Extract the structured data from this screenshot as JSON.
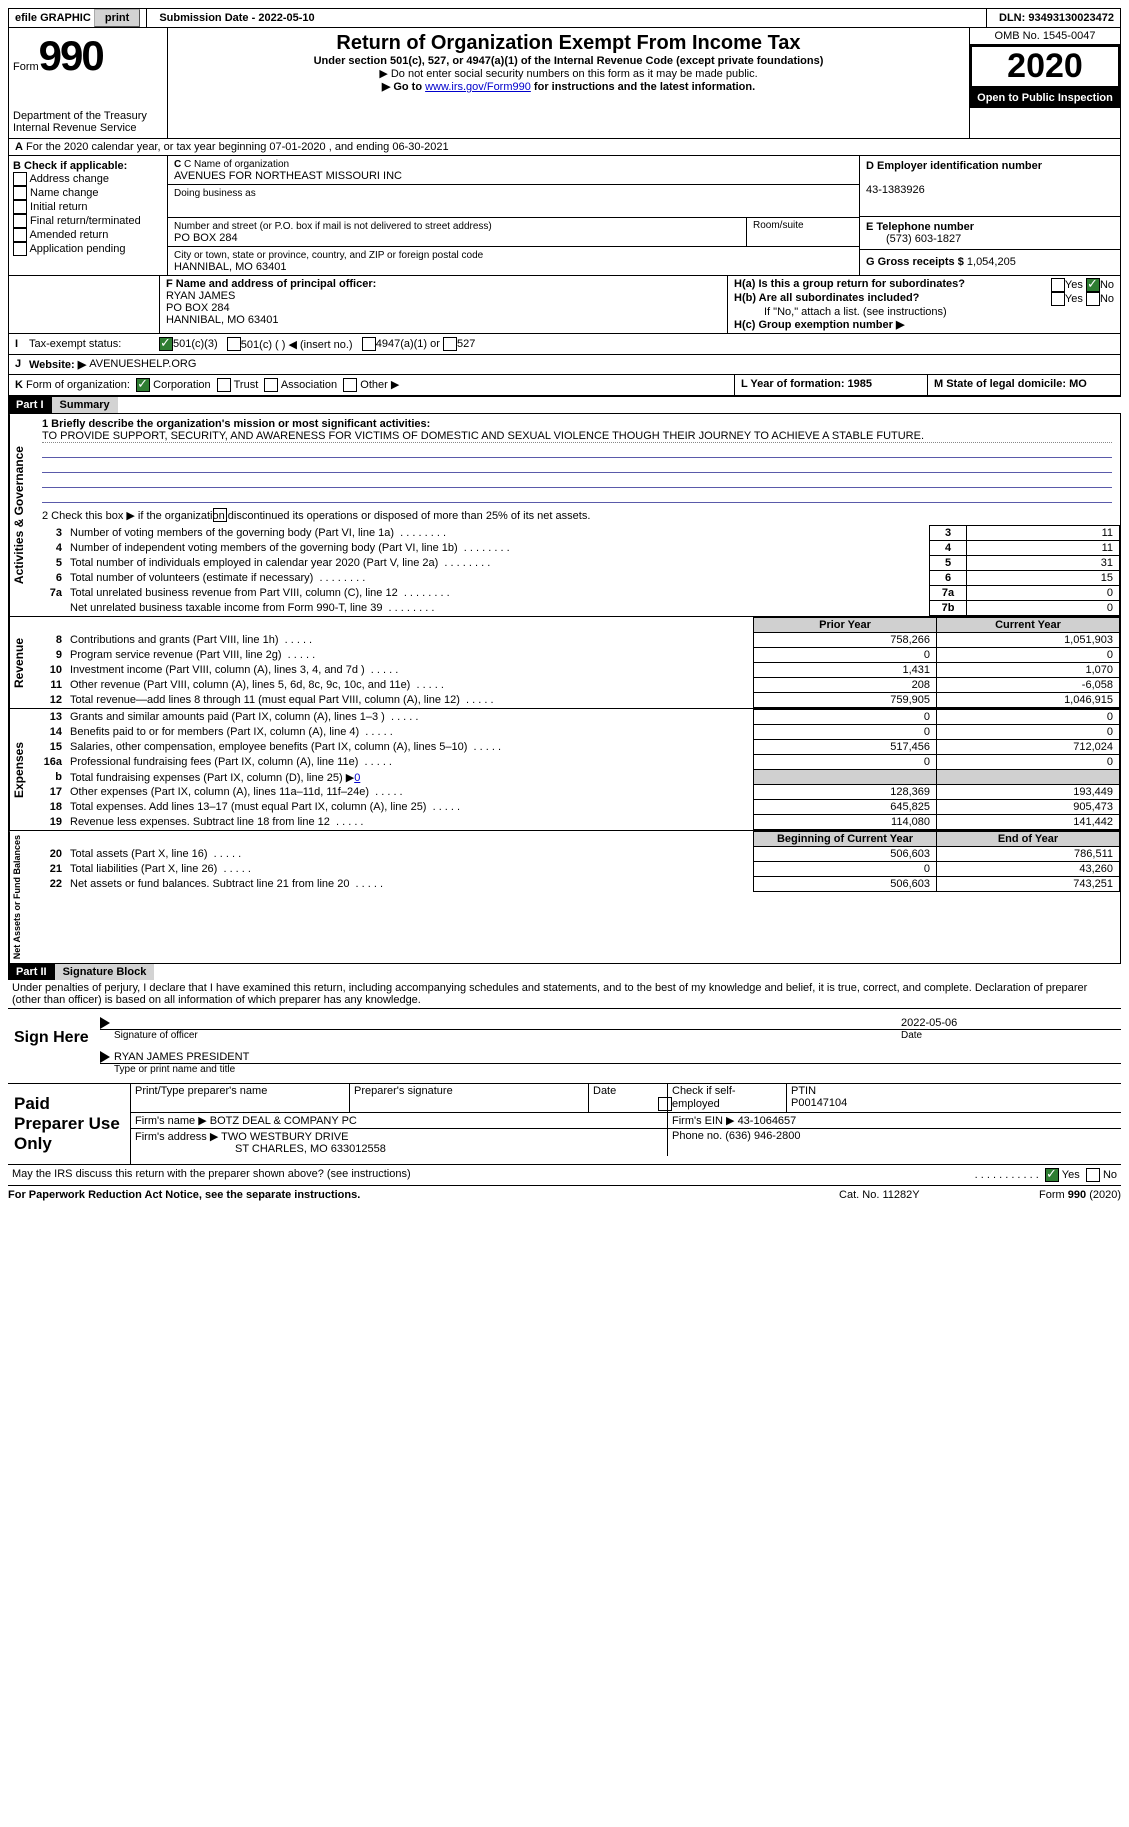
{
  "topbar": {
    "efile": "efile GRAPHIC",
    "print": "print",
    "subdate_label": "Submission Date - ",
    "subdate": "2022-05-10",
    "dln_label": "DLN: ",
    "dln": "93493130023472"
  },
  "header": {
    "form_label": "Form",
    "form_num": "990",
    "dept": "Department of the Treasury\nInternal Revenue Service",
    "title": "Return of Organization Exempt From Income Tax",
    "sub1": "Under section 501(c), 527, or 4947(a)(1) of the Internal Revenue Code (except private foundations)",
    "sub2": "▶ Do not enter social security numbers on this form as it may be made public.",
    "sub3": "▶ Go to ",
    "sub3_link": "www.irs.gov/Form990",
    "sub3_after": " for instructions and the latest information.",
    "omb": "OMB No. 1545-0047",
    "year": "2020",
    "open": "Open to Public Inspection"
  },
  "a_line": "For the 2020 calendar year, or tax year beginning 07-01-2020   , and ending 06-30-2021",
  "boxB": {
    "hdr": "B Check if applicable:",
    "items": [
      "Address change",
      "Name change",
      "Initial return",
      "Final return/terminated",
      "Amended return",
      "Application pending"
    ]
  },
  "boxC": {
    "hdr": "C Name of organization",
    "name": "AVENUES FOR NORTHEAST MISSOURI INC",
    "dba": "Doing business as",
    "addr_hdr": "Number and street (or P.O. box if mail is not delivered to street address)",
    "room": "Room/suite",
    "addr": "PO BOX 284",
    "city_hdr": "City or town, state or province, country, and ZIP or foreign postal code",
    "city": "HANNIBAL, MO  63401"
  },
  "boxD": {
    "hdr": "D Employer identification number",
    "val": "43-1383926"
  },
  "boxE": {
    "hdr": "E Telephone number",
    "val": "(573) 603-1827"
  },
  "boxG": {
    "hdr": "G Gross receipts $ ",
    "val": "1,054,205"
  },
  "boxF": {
    "hdr": "F Name and address of principal officer:",
    "l1": "RYAN JAMES",
    "l2": "PO BOX 284",
    "l3": "HANNIBAL, MO  63401"
  },
  "boxH": {
    "a": "H(a)  Is this a group return for subordinates?",
    "b": "H(b)  Are all subordinates included?",
    "bnote": "If \"No,\" attach a list. (see instructions)",
    "c": "H(c)  Group exemption number ▶",
    "yes": "Yes",
    "no": "No"
  },
  "rowI": {
    "lbl": "I",
    "txt": "Tax-exempt status:",
    "o1": "501(c)(3)",
    "o2": "501(c) (  ) ◀ (insert no.)",
    "o3": "4947(a)(1) or",
    "o4": "527"
  },
  "rowJ": {
    "lbl": "J",
    "txt": "Website: ▶",
    "val": "AVENUESHELP.ORG"
  },
  "rowK": {
    "lbl": "K",
    "txt": "Form of organization:",
    "o1": "Corporation",
    "o2": "Trust",
    "o3": "Association",
    "o4": "Other ▶",
    "L": "L Year of formation: 1985",
    "M": "M State of legal domicile: MO"
  },
  "part1": {
    "bar": "Part I",
    "title": "Summary",
    "l1": "1 Briefly describe the organization's mission or most significant activities:",
    "mission": "TO PROVIDE SUPPORT, SECURITY, AND AWARENESS FOR VICTIMS OF DOMESTIC AND SEXUAL VIOLENCE THOUGH THEIR JOURNEY TO ACHIEVE A STABLE FUTURE.",
    "l2": "2  Check this box ▶      if the organization discontinued its operations or disposed of more than 25% of its net assets.",
    "rows_top": [
      {
        "n": "3",
        "t": "Number of voting members of the governing body (Part VI, line 1a)",
        "v": "11"
      },
      {
        "n": "4",
        "t": "Number of independent voting members of the governing body (Part VI, line 1b)",
        "v": "11"
      },
      {
        "n": "5",
        "t": "Total number of individuals employed in calendar year 2020 (Part V, line 2a)",
        "v": "31"
      },
      {
        "n": "6",
        "t": "Total number of volunteers (estimate if necessary)",
        "v": "15"
      },
      {
        "n": "7a",
        "t": "Total unrelated business revenue from Part VIII, column (C), line 12",
        "v": "0"
      },
      {
        "n": "7b",
        "t": "Net unrelated business taxable income from Form 990-T, line 39",
        "v": "0",
        "no_n_col": true
      }
    ],
    "col_prior": "Prior Year",
    "col_curr": "Current Year",
    "sec_rev": "Revenue",
    "sec_exp": "Expenses",
    "sec_na": "Net Assets or Fund Balances",
    "sec_gov": "Activities & Governance",
    "rows_rev": [
      {
        "n": "8",
        "t": "Contributions and grants (Part VIII, line 1h)",
        "p": "758,266",
        "c": "1,051,903"
      },
      {
        "n": "9",
        "t": "Program service revenue (Part VIII, line 2g)",
        "p": "0",
        "c": "0"
      },
      {
        "n": "10",
        "t": "Investment income (Part VIII, column (A), lines 3, 4, and 7d )",
        "p": "1,431",
        "c": "1,070"
      },
      {
        "n": "11",
        "t": "Other revenue (Part VIII, column (A), lines 5, 6d, 8c, 9c, 10c, and 11e)",
        "p": "208",
        "c": "-6,058"
      },
      {
        "n": "12",
        "t": "Total revenue—add lines 8 through 11 (must equal Part VIII, column (A), line 12)",
        "p": "759,905",
        "c": "1,046,915"
      }
    ],
    "rows_exp": [
      {
        "n": "13",
        "t": "Grants and similar amounts paid (Part IX, column (A), lines 1–3 )",
        "p": "0",
        "c": "0"
      },
      {
        "n": "14",
        "t": "Benefits paid to or for members (Part IX, column (A), line 4)",
        "p": "0",
        "c": "0"
      },
      {
        "n": "15",
        "t": "Salaries, other compensation, employee benefits (Part IX, column (A), lines 5–10)",
        "p": "517,456",
        "c": "712,024"
      },
      {
        "n": "16a",
        "t": "Professional fundraising fees (Part IX, column (A), line 11e)",
        "p": "0",
        "c": "0"
      },
      {
        "n": "b",
        "t": "Total fundraising expenses (Part IX, column (D), line 25) ▶",
        "inline": "0",
        "shade": true
      },
      {
        "n": "17",
        "t": "Other expenses (Part IX, column (A), lines 11a–11d, 11f–24e)",
        "p": "128,369",
        "c": "193,449"
      },
      {
        "n": "18",
        "t": "Total expenses. Add lines 13–17 (must equal Part IX, column (A), line 25)",
        "p": "645,825",
        "c": "905,473"
      },
      {
        "n": "19",
        "t": "Revenue less expenses. Subtract line 18 from line 12",
        "p": "114,080",
        "c": "141,442"
      }
    ],
    "col_beg": "Beginning of Current Year",
    "col_end": "End of Year",
    "rows_na": [
      {
        "n": "20",
        "t": "Total assets (Part X, line 16)",
        "p": "506,603",
        "c": "786,511"
      },
      {
        "n": "21",
        "t": "Total liabilities (Part X, line 26)",
        "p": "0",
        "c": "43,260"
      },
      {
        "n": "22",
        "t": "Net assets or fund balances. Subtract line 21 from line 20",
        "p": "506,603",
        "c": "743,251"
      }
    ]
  },
  "part2": {
    "bar": "Part II",
    "title": "Signature Block",
    "decl": "Under penalties of perjury, I declare that I have examined this return, including accompanying schedules and statements, and to the best of my knowledge and belief, it is true, correct, and complete. Declaration of preparer (other than officer) is based on all information of which preparer has any knowledge.",
    "sign": "Sign Here",
    "sig_date": "2022-05-06",
    "sig_lbl": "Signature of officer",
    "date_lbl": "Date",
    "name": "RYAN JAMES  PRESIDENT",
    "name_lbl": "Type or print name and title",
    "paid": "Paid Preparer Use Only",
    "pp_name": "Print/Type preparer's name",
    "pp_sig": "Preparer's signature",
    "pp_date": "Date",
    "pp_check": "Check       if self-employed",
    "ptin_lbl": "PTIN",
    "ptin": "P00147104",
    "firm_name_lbl": "Firm's name   ▶",
    "firm_name": "BOTZ DEAL & COMPANY PC",
    "firm_ein_lbl": "Firm's EIN ▶",
    "firm_ein": "43-1064657",
    "firm_addr_lbl": "Firm's address ▶",
    "firm_addr1": "TWO WESTBURY DRIVE",
    "firm_addr2": "ST CHARLES, MO  633012558",
    "phone_lbl": "Phone no. ",
    "phone": "(636) 946-2800",
    "may": "May the IRS discuss this return with the preparer shown above? (see instructions)",
    "yes": "Yes",
    "no": "No"
  },
  "footer": {
    "l": "For Paperwork Reduction Act Notice, see the separate instructions.",
    "c": "Cat. No. 11282Y",
    "r": "Form 990 (2020)"
  }
}
